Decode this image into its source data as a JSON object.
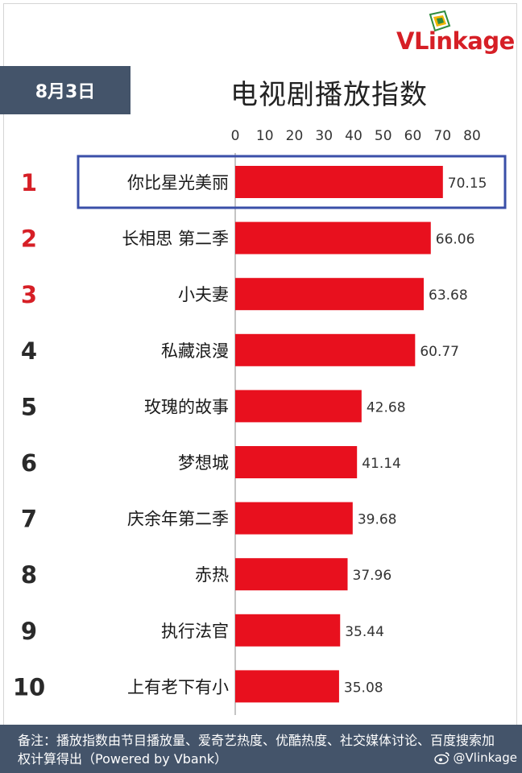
{
  "header": {
    "date": "8月3日",
    "title": "电视剧播放指数",
    "logo": "VLinkage"
  },
  "chart_data": {
    "type": "bar",
    "orientation": "horizontal",
    "title": "电视剧播放指数",
    "xlim": [
      0,
      80
    ],
    "xticks": [
      "0",
      "10",
      "20",
      "30",
      "40",
      "50",
      "60",
      "70",
      "80"
    ],
    "ranks": [
      "1",
      "2",
      "3",
      "4",
      "5",
      "6",
      "7",
      "8",
      "9",
      "10"
    ],
    "categories": [
      "你比星光美丽",
      "长相思 第二季",
      "小夫妻",
      "私藏浪漫",
      "玫瑰的故事",
      "梦想城",
      "庆余年第二季",
      "赤热",
      "执行法官",
      "上有老下有小"
    ],
    "values": [
      70.15,
      66.06,
      63.68,
      60.77,
      42.68,
      41.14,
      39.68,
      37.96,
      35.44,
      35.08
    ],
    "value_labels": [
      "70.15",
      "66.06",
      "63.68",
      "60.77",
      "42.68",
      "41.14",
      "39.68",
      "37.96",
      "35.44",
      "35.08"
    ],
    "highlighted_index": 0,
    "bar_color": "#e8101e",
    "top_rank_color": "#d61f26",
    "rank_color": "#2a2a2a",
    "highlight_color": "#3a4fa8"
  },
  "footer": {
    "note": "备注：播放指数由节目播放量、爱奇艺热度、优酷热度、社交媒体讨论、百度搜索加权计算得出（Powered by Vbank）",
    "watermark": "@Vlinkage"
  }
}
